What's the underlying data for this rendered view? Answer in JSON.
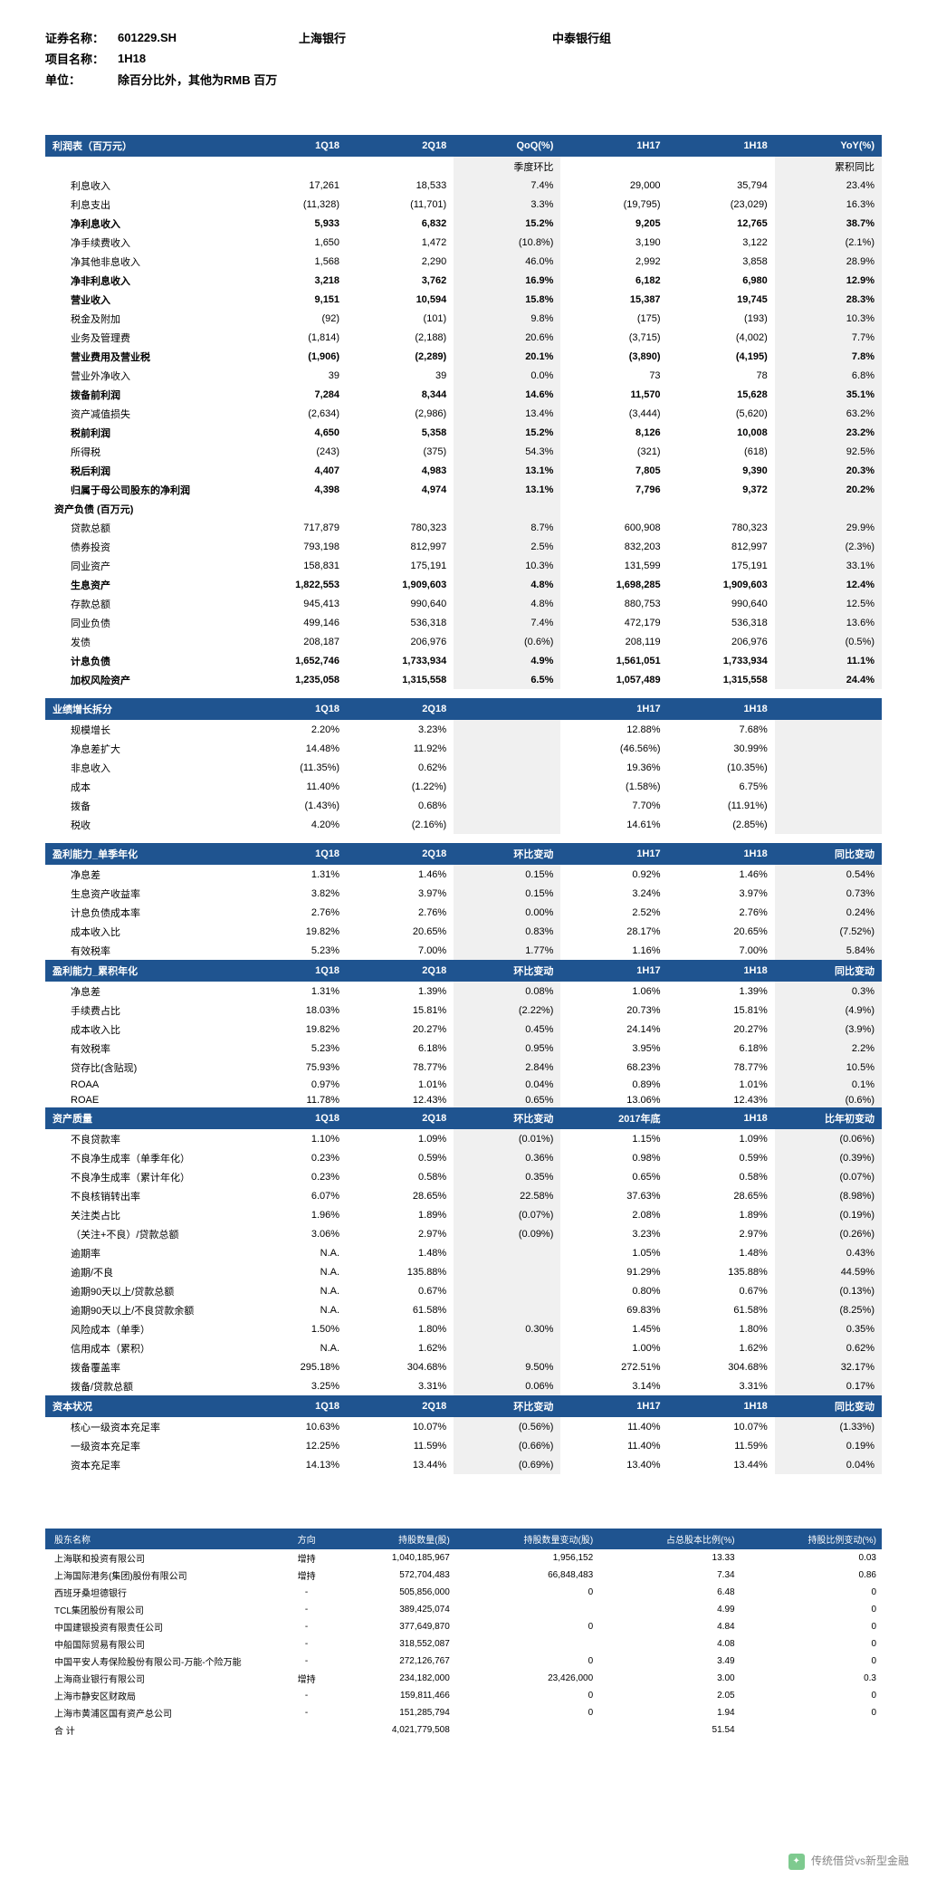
{
  "header": {
    "code_label": "证券名称：",
    "code": "601229.SH",
    "company": "上海银行",
    "group": "中泰银行组",
    "project_label": "项目名称：",
    "project": "1H18",
    "unit_label": "单位：",
    "unit": "除百分比外，其他为RMB 百万"
  },
  "income_header": {
    "c1": "利润表（百万元）",
    "c2": "1Q18",
    "c3": "2Q18",
    "c4": "QoQ(%)",
    "c4sub": "季度环比",
    "c5": "1H17",
    "c6": "1H18",
    "c7": "YoY(%)",
    "c7sub": "累积同比"
  },
  "income_rows": [
    {
      "n": "利息收入",
      "v": [
        "17,261",
        "18,533",
        "7.4%",
        "29,000",
        "35,794",
        "23.4%"
      ],
      "cls": "indent"
    },
    {
      "n": "利息支出",
      "v": [
        "(11,328)",
        "(11,701)",
        "3.3%",
        "(19,795)",
        "(23,029)",
        "16.3%"
      ],
      "cls": "indent"
    },
    {
      "n": "净利息收入",
      "v": [
        "5,933",
        "6,832",
        "15.2%",
        "9,205",
        "12,765",
        "38.7%"
      ],
      "cls": "indent bold"
    },
    {
      "n": "净手续费收入",
      "v": [
        "1,650",
        "1,472",
        "(10.8%)",
        "3,190",
        "3,122",
        "(2.1%)"
      ],
      "cls": "indent"
    },
    {
      "n": "净其他非息收入",
      "v": [
        "1,568",
        "2,290",
        "46.0%",
        "2,992",
        "3,858",
        "28.9%"
      ],
      "cls": "indent"
    },
    {
      "n": "净非利息收入",
      "v": [
        "3,218",
        "3,762",
        "16.9%",
        "6,182",
        "6,980",
        "12.9%"
      ],
      "cls": "indent bold"
    },
    {
      "n": "营业收入",
      "v": [
        "9,151",
        "10,594",
        "15.8%",
        "15,387",
        "19,745",
        "28.3%"
      ],
      "cls": "indent bold"
    },
    {
      "n": "税金及附加",
      "v": [
        "(92)",
        "(101)",
        "9.8%",
        "(175)",
        "(193)",
        "10.3%"
      ],
      "cls": "indent"
    },
    {
      "n": "业务及管理费",
      "v": [
        "(1,814)",
        "(2,188)",
        "20.6%",
        "(3,715)",
        "(4,002)",
        "7.7%"
      ],
      "cls": "indent"
    },
    {
      "n": "营业费用及营业税",
      "v": [
        "(1,906)",
        "(2,289)",
        "20.1%",
        "(3,890)",
        "(4,195)",
        "7.8%"
      ],
      "cls": "indent bold"
    },
    {
      "n": "营业外净收入",
      "v": [
        "39",
        "39",
        "0.0%",
        "73",
        "78",
        "6.8%"
      ],
      "cls": "indent"
    },
    {
      "n": "拨备前利润",
      "v": [
        "7,284",
        "8,344",
        "14.6%",
        "11,570",
        "15,628",
        "35.1%"
      ],
      "cls": "indent bold"
    },
    {
      "n": "资产减值损失",
      "v": [
        "(2,634)",
        "(2,986)",
        "13.4%",
        "(3,444)",
        "(5,620)",
        "63.2%"
      ],
      "cls": "indent"
    },
    {
      "n": "税前利润",
      "v": [
        "4,650",
        "5,358",
        "15.2%",
        "8,126",
        "10,008",
        "23.2%"
      ],
      "cls": "indent bold"
    },
    {
      "n": "所得税",
      "v": [
        "(243)",
        "(375)",
        "54.3%",
        "(321)",
        "(618)",
        "92.5%"
      ],
      "cls": "indent"
    },
    {
      "n": "税后利润",
      "v": [
        "4,407",
        "4,983",
        "13.1%",
        "7,805",
        "9,390",
        "20.3%"
      ],
      "cls": "indent bold"
    },
    {
      "n": "归属于母公司股东的净利润",
      "v": [
        "4,398",
        "4,974",
        "13.1%",
        "7,796",
        "9,372",
        "20.2%"
      ],
      "cls": "indent bold"
    }
  ],
  "balance_title": "资产负债 (百万元)",
  "balance_rows": [
    {
      "n": "贷款总额",
      "v": [
        "717,879",
        "780,323",
        "8.7%",
        "600,908",
        "780,323",
        "29.9%"
      ],
      "cls": "indent"
    },
    {
      "n": "债券投资",
      "v": [
        "793,198",
        "812,997",
        "2.5%",
        "832,203",
        "812,997",
        "(2.3%)"
      ],
      "cls": "indent"
    },
    {
      "n": "同业资产",
      "v": [
        "158,831",
        "175,191",
        "10.3%",
        "131,599",
        "175,191",
        "33.1%"
      ],
      "cls": "indent"
    },
    {
      "n": "生息资产",
      "v": [
        "1,822,553",
        "1,909,603",
        "4.8%",
        "1,698,285",
        "1,909,603",
        "12.4%"
      ],
      "cls": "indent bold"
    },
    {
      "n": "存款总额",
      "v": [
        "945,413",
        "990,640",
        "4.8%",
        "880,753",
        "990,640",
        "12.5%"
      ],
      "cls": "indent"
    },
    {
      "n": "同业负债",
      "v": [
        "499,146",
        "536,318",
        "7.4%",
        "472,179",
        "536,318",
        "13.6%"
      ],
      "cls": "indent"
    },
    {
      "n": "发债",
      "v": [
        "208,187",
        "206,976",
        "(0.6%)",
        "208,119",
        "206,976",
        "(0.5%)"
      ],
      "cls": "indent"
    },
    {
      "n": "计息负债",
      "v": [
        "1,652,746",
        "1,733,934",
        "4.9%",
        "1,561,051",
        "1,733,934",
        "11.1%"
      ],
      "cls": "indent bold"
    },
    {
      "n": "加权风险资产",
      "v": [
        "1,235,058",
        "1,315,558",
        "6.5%",
        "1,057,489",
        "1,315,558",
        "24.4%"
      ],
      "cls": "indent bold"
    }
  ],
  "growth_header": {
    "c1": "业绩增长拆分",
    "c2": "1Q18",
    "c3": "2Q18",
    "c4": "",
    "c5": "1H17",
    "c6": "1H18",
    "c7": ""
  },
  "growth_rows": [
    {
      "n": "规模增长",
      "v": [
        "2.20%",
        "3.23%",
        "",
        "12.88%",
        "7.68%",
        ""
      ],
      "cls": "indent"
    },
    {
      "n": "净息差扩大",
      "v": [
        "14.48%",
        "11.92%",
        "",
        "(46.56%)",
        "30.99%",
        ""
      ],
      "cls": "indent"
    },
    {
      "n": "非息收入",
      "v": [
        "(11.35%)",
        "0.62%",
        "",
        "19.36%",
        "(10.35%)",
        ""
      ],
      "cls": "indent"
    },
    {
      "n": "成本",
      "v": [
        "11.40%",
        "(1.22%)",
        "",
        "(1.58%)",
        "6.75%",
        ""
      ],
      "cls": "indent"
    },
    {
      "n": "拨备",
      "v": [
        "(1.43%)",
        "0.68%",
        "",
        "7.70%",
        "(11.91%)",
        ""
      ],
      "cls": "indent"
    },
    {
      "n": "税收",
      "v": [
        "4.20%",
        "(2.16%)",
        "",
        "14.61%",
        "(2.85%)",
        ""
      ],
      "cls": "indent"
    }
  ],
  "profit_q_header": {
    "c1": "盈利能力_单季年化",
    "c2": "1Q18",
    "c3": "2Q18",
    "c4": "环比变动",
    "c5": "1H17",
    "c6": "1H18",
    "c7": "同比变动"
  },
  "profit_q_rows": [
    {
      "n": "净息差",
      "v": [
        "1.31%",
        "1.46%",
        "0.15%",
        "0.92%",
        "1.46%",
        "0.54%"
      ],
      "cls": "indent"
    },
    {
      "n": "生息资产收益率",
      "v": [
        "3.82%",
        "3.97%",
        "0.15%",
        "3.24%",
        "3.97%",
        "0.73%"
      ],
      "cls": "indent"
    },
    {
      "n": "计息负债成本率",
      "v": [
        "2.76%",
        "2.76%",
        "0.00%",
        "2.52%",
        "2.76%",
        "0.24%"
      ],
      "cls": "indent"
    },
    {
      "n": "成本收入比",
      "v": [
        "19.82%",
        "20.65%",
        "0.83%",
        "28.17%",
        "20.65%",
        "(7.52%)"
      ],
      "cls": "indent"
    },
    {
      "n": "有效税率",
      "v": [
        "5.23%",
        "7.00%",
        "1.77%",
        "1.16%",
        "7.00%",
        "5.84%"
      ],
      "cls": "indent"
    }
  ],
  "profit_c_header": {
    "c1": "盈利能力_累积年化",
    "c2": "1Q18",
    "c3": "2Q18",
    "c4": "环比变动",
    "c5": "1H17",
    "c6": "1H18",
    "c7": "同比变动"
  },
  "profit_c_rows": [
    {
      "n": "净息差",
      "v": [
        "1.31%",
        "1.39%",
        "0.08%",
        "1.06%",
        "1.39%",
        "0.3%"
      ],
      "cls": "indent"
    },
    {
      "n": "手续费占比",
      "v": [
        "18.03%",
        "15.81%",
        "(2.22%)",
        "20.73%",
        "15.81%",
        "(4.9%)"
      ],
      "cls": "indent"
    },
    {
      "n": "成本收入比",
      "v": [
        "19.82%",
        "20.27%",
        "0.45%",
        "24.14%",
        "20.27%",
        "(3.9%)"
      ],
      "cls": "indent"
    },
    {
      "n": "有效税率",
      "v": [
        "5.23%",
        "6.18%",
        "0.95%",
        "3.95%",
        "6.18%",
        "2.2%"
      ],
      "cls": "indent"
    },
    {
      "n": "贷存比(含贴现)",
      "v": [
        "75.93%",
        "78.77%",
        "2.84%",
        "68.23%",
        "78.77%",
        "10.5%"
      ],
      "cls": "indent"
    },
    {
      "n": "ROAA",
      "v": [
        "0.97%",
        "1.01%",
        "0.04%",
        "0.89%",
        "1.01%",
        "0.1%"
      ],
      "cls": "indent"
    },
    {
      "n": "ROAE",
      "v": [
        "11.78%",
        "12.43%",
        "0.65%",
        "13.06%",
        "12.43%",
        "(0.6%)"
      ],
      "cls": "indent"
    }
  ],
  "asset_header": {
    "c1": "资产质量",
    "c2": "1Q18",
    "c3": "2Q18",
    "c4": "环比变动",
    "c5": "2017年底",
    "c6": "1H18",
    "c7": "比年初变动"
  },
  "asset_rows": [
    {
      "n": "不良贷款率",
      "v": [
        "1.10%",
        "1.09%",
        "(0.01%)",
        "1.15%",
        "1.09%",
        "(0.06%)"
      ],
      "cls": "indent"
    },
    {
      "n": "不良净生成率（单季年化）",
      "v": [
        "0.23%",
        "0.59%",
        "0.36%",
        "0.98%",
        "0.59%",
        "(0.39%)"
      ],
      "cls": "indent"
    },
    {
      "n": "不良净生成率（累计年化）",
      "v": [
        "0.23%",
        "0.58%",
        "0.35%",
        "0.65%",
        "0.58%",
        "(0.07%)"
      ],
      "cls": "indent"
    },
    {
      "n": "不良核销转出率",
      "v": [
        "6.07%",
        "28.65%",
        "22.58%",
        "37.63%",
        "28.65%",
        "(8.98%)"
      ],
      "cls": "indent"
    },
    {
      "n": "关注类占比",
      "v": [
        "1.96%",
        "1.89%",
        "(0.07%)",
        "2.08%",
        "1.89%",
        "(0.19%)"
      ],
      "cls": "indent"
    },
    {
      "n": "（关注+不良）/贷款总额",
      "v": [
        "3.06%",
        "2.97%",
        "(0.09%)",
        "3.23%",
        "2.97%",
        "(0.26%)"
      ],
      "cls": "indent"
    },
    {
      "n": "逾期率",
      "v": [
        "N.A.",
        "1.48%",
        "",
        "1.05%",
        "1.48%",
        "0.43%"
      ],
      "cls": "indent"
    },
    {
      "n": "逾期/不良",
      "v": [
        "N.A.",
        "135.88%",
        "",
        "91.29%",
        "135.88%",
        "44.59%"
      ],
      "cls": "indent"
    },
    {
      "n": "逾期90天以上/贷款总额",
      "v": [
        "N.A.",
        "0.67%",
        "",
        "0.80%",
        "0.67%",
        "(0.13%)"
      ],
      "cls": "indent"
    },
    {
      "n": "逾期90天以上/不良贷款余额",
      "v": [
        "N.A.",
        "61.58%",
        "",
        "69.83%",
        "61.58%",
        "(8.25%)"
      ],
      "cls": "indent"
    },
    {
      "n": "风险成本（单季）",
      "v": [
        "1.50%",
        "1.80%",
        "0.30%",
        "1.45%",
        "1.80%",
        "0.35%"
      ],
      "cls": "indent"
    },
    {
      "n": "信用成本（累积）",
      "v": [
        "N.A.",
        "1.62%",
        "",
        "1.00%",
        "1.62%",
        "0.62%"
      ],
      "cls": "indent"
    },
    {
      "n": "拨备覆盖率",
      "v": [
        "295.18%",
        "304.68%",
        "9.50%",
        "272.51%",
        "304.68%",
        "32.17%"
      ],
      "cls": "indent"
    },
    {
      "n": "拨备/贷款总额",
      "v": [
        "3.25%",
        "3.31%",
        "0.06%",
        "3.14%",
        "3.31%",
        "0.17%"
      ],
      "cls": "indent"
    }
  ],
  "capital_header": {
    "c1": "资本状况",
    "c2": "1Q18",
    "c3": "2Q18",
    "c4": "环比变动",
    "c5": "1H17",
    "c6": "1H18",
    "c7": "同比变动"
  },
  "capital_rows": [
    {
      "n": "核心一级资本充足率",
      "v": [
        "10.63%",
        "10.07%",
        "(0.56%)",
        "11.40%",
        "10.07%",
        "(1.33%)"
      ],
      "cls": "indent"
    },
    {
      "n": "一级资本充足率",
      "v": [
        "12.25%",
        "11.59%",
        "(0.66%)",
        "11.40%",
        "11.59%",
        "0.19%"
      ],
      "cls": "indent"
    },
    {
      "n": "资本充足率",
      "v": [
        "14.13%",
        "13.44%",
        "(0.69%)",
        "13.40%",
        "13.44%",
        "0.04%"
      ],
      "cls": "indent"
    }
  ],
  "shareholders": {
    "headers": [
      "股东名称",
      "方向",
      "持股数量(股)",
      "持股数量变动(股)",
      "占总股本比例(%)",
      "持股比例变动(%)"
    ],
    "rows": [
      [
        "上海联和投资有限公司",
        "增持",
        "1,040,185,967",
        "1,956,152",
        "13.33",
        "0.03"
      ],
      [
        "上海国际港务(集团)股份有限公司",
        "增持",
        "572,704,483",
        "66,848,483",
        "7.34",
        "0.86"
      ],
      [
        "西班牙桑坦德银行",
        "-",
        "505,856,000",
        "0",
        "6.48",
        "0"
      ],
      [
        "TCL集团股份有限公司",
        "-",
        "389,425,074",
        "",
        "4.99",
        "0"
      ],
      [
        "中国建银投资有限责任公司",
        "-",
        "377,649,870",
        "0",
        "4.84",
        "0"
      ],
      [
        "中船国际贸易有限公司",
        "-",
        "318,552,087",
        "",
        "4.08",
        "0"
      ],
      [
        "中国平安人寿保险股份有限公司-万能-个险万能",
        "-",
        "272,126,767",
        "0",
        "3.49",
        "0"
      ],
      [
        "上海商业银行有限公司",
        "增持",
        "234,182,000",
        "23,426,000",
        "3.00",
        "0.3"
      ],
      [
        "上海市静安区财政局",
        "-",
        "159,811,466",
        "0",
        "2.05",
        "0"
      ],
      [
        "上海市黄浦区国有资产总公司",
        "-",
        "151,285,794",
        "0",
        "1.94",
        "0"
      ],
      [
        "合 计",
        "",
        "4,021,779,508",
        "",
        "51.54",
        ""
      ]
    ]
  },
  "watermark": "传统借贷vs新型金融"
}
